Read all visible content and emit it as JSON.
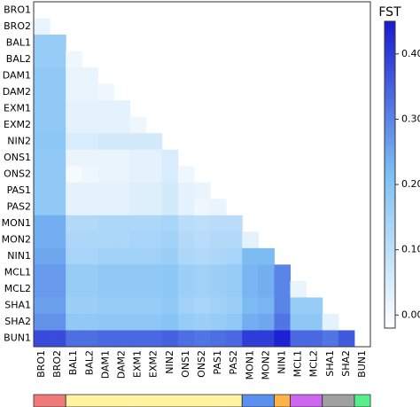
{
  "chart_data": {
    "type": "heatmap",
    "categories": [
      "BRO1",
      "BRO2",
      "BAL1",
      "BAL2",
      "DAM1",
      "DAM2",
      "EXM1",
      "EXM2",
      "NIN2",
      "ONS1",
      "ONS2",
      "PAS1",
      "PAS2",
      "MON1",
      "MON2",
      "NIN1",
      "MCL1",
      "MCL2",
      "SHA1",
      "SHA2",
      "BUN1"
    ],
    "category_colors": [
      "#f07a7a",
      "#f07a7a",
      "#fff3a0",
      "#fff3a0",
      "#fff3a0",
      "#fff3a0",
      "#fff3a0",
      "#fff3a0",
      "#fff3a0",
      "#fff3a0",
      "#fff3a0",
      "#fff3a0",
      "#fff3a0",
      "#5b8ff0",
      "#5b8ff0",
      "#ffb347",
      "#cc66ee",
      "#cc66ee",
      "#a0a0a0",
      "#a0a0a0",
      "#55ee88"
    ],
    "values": [
      [
        null,
        null,
        null,
        null,
        null,
        null,
        null,
        null,
        null,
        null,
        null,
        null,
        null,
        null,
        null,
        null,
        null,
        null,
        null,
        null,
        null
      ],
      [
        0.02,
        null,
        null,
        null,
        null,
        null,
        null,
        null,
        null,
        null,
        null,
        null,
        null,
        null,
        null,
        null,
        null,
        null,
        null,
        null,
        null
      ],
      [
        0.17,
        0.17,
        null,
        null,
        null,
        null,
        null,
        null,
        null,
        null,
        null,
        null,
        null,
        null,
        null,
        null,
        null,
        null,
        null,
        null,
        null
      ],
      [
        0.17,
        0.17,
        0.01,
        null,
        null,
        null,
        null,
        null,
        null,
        null,
        null,
        null,
        null,
        null,
        null,
        null,
        null,
        null,
        null,
        null,
        null
      ],
      [
        0.18,
        0.18,
        0.02,
        0.02,
        null,
        null,
        null,
        null,
        null,
        null,
        null,
        null,
        null,
        null,
        null,
        null,
        null,
        null,
        null,
        null,
        null
      ],
      [
        0.18,
        0.18,
        0.02,
        0.02,
        0.01,
        null,
        null,
        null,
        null,
        null,
        null,
        null,
        null,
        null,
        null,
        null,
        null,
        null,
        null,
        null,
        null
      ],
      [
        0.18,
        0.18,
        0.03,
        0.03,
        0.03,
        0.03,
        null,
        null,
        null,
        null,
        null,
        null,
        null,
        null,
        null,
        null,
        null,
        null,
        null,
        null,
        null
      ],
      [
        0.18,
        0.18,
        0.03,
        0.03,
        0.03,
        0.03,
        0.01,
        null,
        null,
        null,
        null,
        null,
        null,
        null,
        null,
        null,
        null,
        null,
        null,
        null,
        null
      ],
      [
        0.19,
        0.19,
        0.05,
        0.05,
        0.06,
        0.06,
        0.06,
        0.06,
        null,
        null,
        null,
        null,
        null,
        null,
        null,
        null,
        null,
        null,
        null,
        null,
        null
      ],
      [
        0.18,
        0.18,
        0.02,
        0.02,
        0.02,
        0.02,
        0.03,
        0.03,
        0.05,
        null,
        null,
        null,
        null,
        null,
        null,
        null,
        null,
        null,
        null,
        null,
        null
      ],
      [
        0.18,
        0.18,
        0.0,
        0.01,
        0.02,
        0.02,
        0.03,
        0.03,
        0.05,
        0.01,
        null,
        null,
        null,
        null,
        null,
        null,
        null,
        null,
        null,
        null,
        null
      ],
      [
        0.18,
        0.18,
        0.03,
        0.03,
        0.03,
        0.03,
        0.04,
        0.04,
        0.06,
        0.03,
        0.02,
        null,
        null,
        null,
        null,
        null,
        null,
        null,
        null,
        null,
        null
      ],
      [
        0.18,
        0.18,
        0.03,
        0.03,
        0.03,
        0.03,
        0.04,
        0.04,
        0.06,
        0.03,
        0.01,
        0.02,
        null,
        null,
        null,
        null,
        null,
        null,
        null,
        null,
        null
      ],
      [
        0.24,
        0.24,
        0.12,
        0.12,
        0.13,
        0.13,
        0.13,
        0.13,
        0.14,
        0.11,
        0.1,
        0.11,
        0.11,
        null,
        null,
        null,
        null,
        null,
        null,
        null,
        null
      ],
      [
        0.24,
        0.24,
        0.13,
        0.13,
        0.13,
        0.13,
        0.14,
        0.14,
        0.15,
        0.12,
        0.11,
        0.12,
        0.12,
        0.03,
        null,
        null,
        null,
        null,
        null,
        null,
        null
      ],
      [
        0.25,
        0.25,
        0.14,
        0.14,
        0.15,
        0.15,
        0.15,
        0.15,
        0.16,
        0.13,
        0.12,
        0.13,
        0.14,
        0.22,
        0.22,
        null,
        null,
        null,
        null,
        null,
        null
      ],
      [
        0.27,
        0.27,
        0.17,
        0.17,
        0.18,
        0.18,
        0.18,
        0.18,
        0.19,
        0.16,
        0.15,
        0.16,
        0.17,
        0.23,
        0.24,
        0.3,
        null,
        null,
        null,
        null,
        null
      ],
      [
        0.27,
        0.27,
        0.17,
        0.17,
        0.18,
        0.18,
        0.18,
        0.18,
        0.19,
        0.16,
        0.15,
        0.16,
        0.17,
        0.23,
        0.24,
        0.3,
        0.02,
        null,
        null,
        null,
        null
      ],
      [
        0.26,
        0.26,
        0.16,
        0.16,
        0.17,
        0.17,
        0.17,
        0.17,
        0.18,
        0.15,
        0.14,
        0.15,
        0.16,
        0.22,
        0.23,
        0.3,
        0.17,
        0.17,
        null,
        null,
        null
      ],
      [
        0.28,
        0.28,
        0.18,
        0.18,
        0.19,
        0.19,
        0.19,
        0.19,
        0.2,
        0.17,
        0.16,
        0.17,
        0.18,
        0.24,
        0.25,
        0.32,
        0.19,
        0.19,
        0.03,
        null,
        null
      ],
      [
        0.38,
        0.38,
        0.33,
        0.33,
        0.34,
        0.34,
        0.34,
        0.34,
        0.35,
        0.33,
        0.32,
        0.33,
        0.34,
        0.4,
        0.4,
        0.44,
        0.34,
        0.34,
        0.32,
        0.36,
        null
      ]
    ],
    "colorbar_title": "FST",
    "clim": [
      -0.02,
      0.45
    ],
    "colorscale": [
      "#ffffff",
      "#7ec0f4",
      "#1a1ad0"
    ],
    "cticks": [
      {
        "value": 0,
        "label": "0.00"
      },
      {
        "value": 0.1,
        "label": "0.10"
      },
      {
        "value": 0.2,
        "label": "0.20"
      },
      {
        "value": 0.3,
        "label": "0.30"
      },
      {
        "value": 0.4,
        "label": "0.40"
      }
    ]
  }
}
